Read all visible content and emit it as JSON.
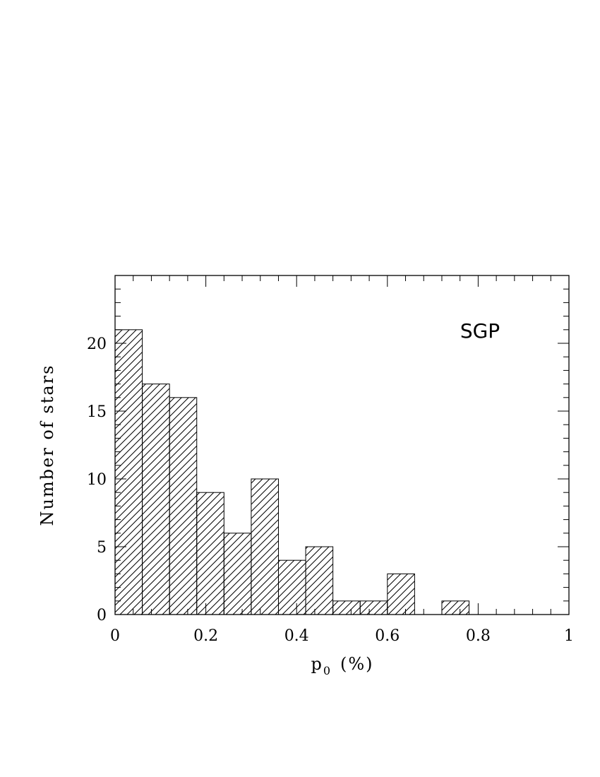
{
  "chart_data": {
    "type": "bar",
    "histogram": true,
    "bin_width": 0.06,
    "bin_starts": [
      0,
      0.06,
      0.12,
      0.18,
      0.24,
      0.3,
      0.36,
      0.42,
      0.48,
      0.54,
      0.6,
      0.66,
      0.72
    ],
    "values": [
      21,
      17,
      16,
      9,
      6,
      10,
      4,
      5,
      1,
      1,
      3,
      0,
      1
    ],
    "title": "",
    "xlabel": "p",
    "xlabel_subscript": "0",
    "xlabel_unit": "(%)",
    "ylabel": "Number of stars",
    "xlim": [
      0,
      1
    ],
    "ylim": [
      0,
      25
    ],
    "xticks": [
      0,
      0.2,
      0.4,
      0.6,
      0.8,
      1
    ],
    "xtick_labels": [
      "0",
      "0.2",
      "0.4",
      "0.6",
      "0.8",
      "1"
    ],
    "yticks": [
      0,
      5,
      10,
      15,
      20
    ],
    "ytick_labels": [
      "0",
      "5",
      "10",
      "15",
      "20"
    ],
    "annotation": "SGP",
    "fill": "diagonal hatching",
    "grid": false,
    "colors": {
      "stroke": "#000000",
      "background": "#ffffff"
    }
  }
}
